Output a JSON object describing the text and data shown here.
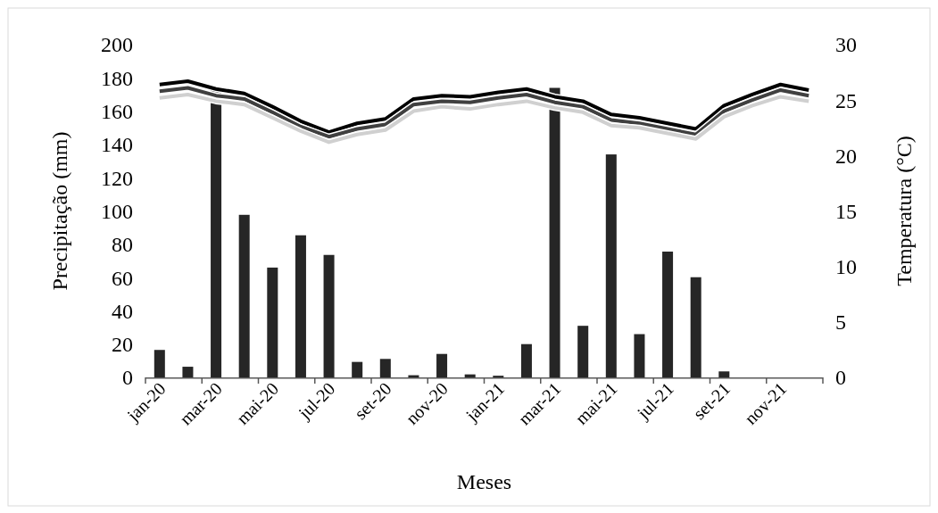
{
  "chart_data": {
    "type": "bar",
    "xlabel": "Meses",
    "ylabel": "Precipitação (mm)",
    "y2label": "Temperatura (°C)",
    "categories": [
      "jan-20",
      null,
      "mar-20",
      null,
      "mai-20",
      null,
      "jul-20",
      null,
      "set-20",
      null,
      "nov-20",
      null,
      "jan-21",
      null,
      "mar-21",
      null,
      "mai-21",
      null,
      "jul-21",
      null,
      "set-21",
      null,
      "nov-21",
      null
    ],
    "ylim": [
      0,
      200
    ],
    "yticks": [
      0,
      20,
      40,
      60,
      80,
      100,
      120,
      140,
      160,
      180,
      200
    ],
    "y2lim": [
      0,
      30
    ],
    "y2ticks": [
      0,
      5,
      10,
      15,
      20,
      25,
      30
    ],
    "grid": false,
    "line_style": "solid",
    "marker": "none",
    "series": [
      {
        "color": "#262626",
        "values": [
          16.5,
          6.4,
          174,
          97.7,
          66,
          85.4,
          73.6,
          9.3,
          11.1,
          1.3,
          14.1,
          1.8,
          1,
          20,
          174,
          31,
          134,
          26,
          75.6,
          60.2,
          3.6,
          0,
          0,
          0
        ]
      },
      {
        "type": "line",
        "axis": "y2",
        "color": "#000000",
        "values": [
          26.4,
          26.7,
          26.0,
          25.6,
          24.4,
          23.1,
          22.1,
          22.9,
          23.3,
          25.1,
          25.4,
          25.3,
          25.7,
          26.0,
          25.3,
          24.9,
          23.7,
          23.4,
          22.9,
          22.4,
          24.5,
          25.5,
          26.4,
          25.9
        ]
      },
      {
        "type": "line",
        "axis": "y2",
        "color": "#404040",
        "values": [
          25.8,
          26.1,
          25.4,
          25.1,
          23.9,
          22.6,
          21.7,
          22.4,
          22.8,
          24.6,
          24.9,
          24.8,
          25.2,
          25.5,
          24.8,
          24.4,
          23.2,
          22.9,
          22.4,
          21.9,
          24.0,
          25.0,
          25.9,
          25.4
        ]
      },
      {
        "type": "line",
        "axis": "y2",
        "color": "#d0d0d0",
        "values": [
          25.2,
          25.5,
          24.9,
          24.6,
          23.4,
          22.2,
          21.2,
          21.9,
          22.3,
          24.0,
          24.4,
          24.2,
          24.6,
          24.9,
          24.3,
          23.9,
          22.7,
          22.5,
          22.0,
          21.5,
          23.5,
          24.5,
          25.3,
          24.9
        ]
      }
    ]
  }
}
